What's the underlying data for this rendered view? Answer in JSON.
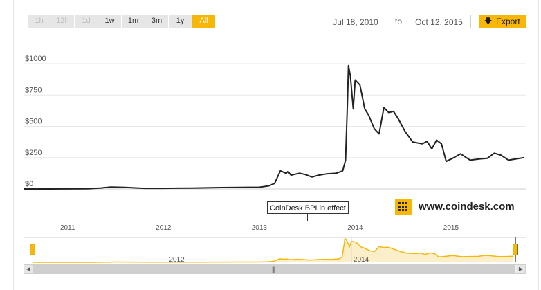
{
  "range_buttons": [
    {
      "label": "1h",
      "state": "disabled"
    },
    {
      "label": "12h",
      "state": "disabled"
    },
    {
      "label": "1d",
      "state": "disabled"
    },
    {
      "label": "1w",
      "state": "enabled"
    },
    {
      "label": "1m",
      "state": "enabled"
    },
    {
      "label": "3m",
      "state": "enabled"
    },
    {
      "label": "1y",
      "state": "enabled"
    },
    {
      "label": "All",
      "state": "active"
    }
  ],
  "date_range": {
    "from": "Jul 18, 2010",
    "to_label": "to",
    "to": "Oct 12, 2015"
  },
  "export": {
    "label": "Export",
    "icon": "download-arrow-icon"
  },
  "brand": {
    "text": "www.coindesk.com",
    "icon": "coindesk-logo-icon"
  },
  "annotation": {
    "text": "CoinDesk BPI in effect"
  },
  "colors": {
    "accent": "#f7b708",
    "line": "#222222",
    "navigator_fill": "#fbefc9"
  },
  "chart_data": {
    "type": "line",
    "y_ticks": [
      "$0",
      "$250",
      "$500",
      "$750",
      "$1000"
    ],
    "y_tick_values": [
      0,
      250,
      500,
      750,
      1000
    ],
    "ylim": [
      0,
      1000
    ],
    "x_ticks": [
      "2011",
      "2012",
      "2013",
      "2014",
      "2015"
    ],
    "navigator_x_ticks": [
      "2012",
      "2014"
    ],
    "grid": true,
    "series": [
      {
        "x": [
          2010.54,
          2010.8,
          2011.0,
          2011.2,
          2011.35,
          2011.45,
          2011.6,
          2011.8,
          2012.0,
          2012.3,
          2012.6,
          2012.9,
          2013.0,
          2013.1,
          2013.16,
          2013.22,
          2013.28,
          2013.3,
          2013.33,
          2013.36,
          2013.42,
          2013.48,
          2013.55,
          2013.62,
          2013.7,
          2013.8,
          2013.87,
          2013.9,
          2013.92,
          2013.93,
          2013.95,
          2013.98,
          2014.0,
          2014.05,
          2014.1,
          2014.14,
          2014.2,
          2014.25,
          2014.3,
          2014.35,
          2014.4,
          2014.45,
          2014.52,
          2014.6,
          2014.7,
          2014.75,
          2014.8,
          2014.85,
          2014.9,
          2014.95,
          2015.03,
          2015.1,
          2015.2,
          2015.3,
          2015.38,
          2015.45,
          2015.52,
          2015.6,
          2015.68,
          2015.76
        ],
        "y": [
          0.1,
          0.2,
          0.3,
          1,
          8,
          15,
          12,
          5,
          5,
          7,
          11,
          13,
          14,
          25,
          45,
          145,
          125,
          140,
          110,
          115,
          125,
          115,
          95,
          110,
          120,
          125,
          145,
          230,
          700,
          985,
          900,
          640,
          870,
          830,
          640,
          590,
          480,
          440,
          650,
          610,
          620,
          560,
          460,
          375,
          360,
          380,
          320,
          390,
          360,
          220,
          250,
          280,
          230,
          240,
          245,
          285,
          270,
          230,
          240,
          250
        ]
      }
    ]
  }
}
